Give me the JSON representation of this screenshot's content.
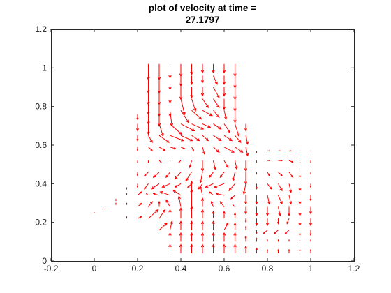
{
  "chart_data": {
    "type": "quiver",
    "title_line1": "plot of velocity at time =",
    "title_line2": "27.1797",
    "xlabel": "",
    "ylabel": "",
    "xlim": [
      -0.2,
      1.2
    ],
    "ylim": [
      0,
      1.2
    ],
    "xticks": [
      "-0.2",
      "0",
      "0.2",
      "0.4",
      "0.6",
      "0.8",
      "1",
      "1.2"
    ],
    "yticks": [
      "0",
      "0.2",
      "0.4",
      "0.6",
      "0.8",
      "1",
      "1.2"
    ],
    "arrow_color": "#ff0000",
    "arrow_scale": 0.9,
    "vectors": [
      [
        0.25,
        1.02,
        0,
        -0.09
      ],
      [
        0.3,
        1.02,
        0,
        -0.09
      ],
      [
        0.35,
        1.02,
        0,
        -0.08
      ],
      [
        0.4,
        1.02,
        0,
        -0.07
      ],
      [
        0.45,
        1.02,
        0,
        -0.06
      ],
      [
        0.5,
        1.02,
        0,
        -0.05
      ],
      [
        0.55,
        1.02,
        0,
        -0.05
      ],
      [
        0.6,
        1.02,
        0,
        -0.05
      ],
      [
        0.65,
        1.02,
        0,
        -0.07
      ],
      [
        0.25,
        0.96,
        0,
        -0.1
      ],
      [
        0.3,
        0.96,
        0,
        -0.1
      ],
      [
        0.35,
        0.96,
        0,
        -0.08
      ],
      [
        0.4,
        0.96,
        0,
        -0.06
      ],
      [
        0.45,
        0.96,
        0,
        -0.05
      ],
      [
        0.5,
        0.96,
        0,
        -0.04
      ],
      [
        0.55,
        0.96,
        0.02,
        -0.05
      ],
      [
        0.6,
        0.96,
        0,
        -0.05
      ],
      [
        0.65,
        0.96,
        0,
        -0.07
      ],
      [
        0.25,
        0.9,
        0,
        -0.1
      ],
      [
        0.3,
        0.9,
        0,
        -0.1
      ],
      [
        0.35,
        0.9,
        0,
        -0.09
      ],
      [
        0.4,
        0.9,
        0,
        -0.07
      ],
      [
        0.45,
        0.9,
        0,
        -0.06
      ],
      [
        0.5,
        0.9,
        0,
        -0.05
      ],
      [
        0.55,
        0.9,
        0.03,
        -0.06
      ],
      [
        0.6,
        0.9,
        0,
        -0.05
      ],
      [
        0.65,
        0.9,
        0,
        -0.07
      ],
      [
        0.25,
        0.84,
        0,
        -0.09
      ],
      [
        0.3,
        0.84,
        0,
        -0.1
      ],
      [
        0.35,
        0.84,
        0,
        -0.1
      ],
      [
        0.4,
        0.84,
        0.02,
        -0.09
      ],
      [
        0.45,
        0.84,
        0.02,
        -0.07
      ],
      [
        0.5,
        0.84,
        0.03,
        -0.05
      ],
      [
        0.55,
        0.84,
        0.03,
        -0.05
      ],
      [
        0.6,
        0.84,
        0,
        -0.06
      ],
      [
        0.65,
        0.84,
        0,
        -0.07
      ],
      [
        0.25,
        0.78,
        0,
        -0.08
      ],
      [
        0.3,
        0.78,
        0,
        -0.09
      ],
      [
        0.35,
        0.78,
        0.01,
        -0.09
      ],
      [
        0.4,
        0.78,
        0.04,
        -0.07
      ],
      [
        0.45,
        0.78,
        0.05,
        -0.05
      ],
      [
        0.5,
        0.78,
        0.05,
        -0.03
      ],
      [
        0.55,
        0.78,
        0.03,
        -0.04
      ],
      [
        0.6,
        0.78,
        0.01,
        -0.05
      ],
      [
        0.65,
        0.78,
        0,
        -0.07
      ],
      [
        0.2,
        0.71,
        0,
        -0.04
      ],
      [
        0.25,
        0.71,
        0,
        -0.06
      ],
      [
        0.3,
        0.71,
        0.02,
        -0.07
      ],
      [
        0.35,
        0.71,
        0.06,
        -0.06
      ],
      [
        0.4,
        0.71,
        0.07,
        -0.04
      ],
      [
        0.45,
        0.71,
        0.06,
        -0.03
      ],
      [
        0.5,
        0.71,
        0.04,
        -0.02
      ],
      [
        0.55,
        0.71,
        0.04,
        -0.03
      ],
      [
        0.6,
        0.71,
        0.03,
        -0.05
      ],
      [
        0.65,
        0.71,
        0.02,
        -0.07
      ],
      [
        0.7,
        0.71,
        0,
        -0.04
      ],
      [
        0.2,
        0.65,
        0,
        -0.03
      ],
      [
        0.25,
        0.65,
        0.02,
        -0.04
      ],
      [
        0.3,
        0.65,
        0.05,
        -0.04
      ],
      [
        0.35,
        0.65,
        0.07,
        -0.03
      ],
      [
        0.4,
        0.65,
        0.06,
        -0.03
      ],
      [
        0.45,
        0.65,
        0.04,
        -0.03
      ],
      [
        0.5,
        0.65,
        0.03,
        -0.03
      ],
      [
        0.55,
        0.65,
        0.04,
        -0.03
      ],
      [
        0.6,
        0.65,
        0.04,
        -0.03
      ],
      [
        0.65,
        0.65,
        0.03,
        -0.04
      ],
      [
        0.7,
        0.65,
        0.01,
        -0.05
      ],
      [
        0.2,
        0.59,
        0,
        -0.02
      ],
      [
        0.25,
        0.59,
        0.02,
        -0.02
      ],
      [
        0.3,
        0.59,
        0.03,
        -0.02
      ],
      [
        0.35,
        0.59,
        0.03,
        -0.01
      ],
      [
        0.4,
        0.59,
        0.02,
        -0.01
      ],
      [
        0.45,
        0.59,
        0.01,
        -0.02
      ],
      [
        0.5,
        0.59,
        0.01,
        -0.04
      ],
      [
        0.55,
        0.59,
        0.03,
        -0.03
      ],
      [
        0.6,
        0.59,
        0.05,
        -0.03
      ],
      [
        0.65,
        0.59,
        0.04,
        -0.03
      ],
      [
        0.7,
        0.59,
        0.01,
        -0.05
      ],
      [
        0.75,
        0.57,
        0,
        -0.01
      ],
      [
        0.8,
        0.57,
        0.01,
        0
      ],
      [
        0.85,
        0.57,
        0.01,
        0
      ],
      [
        0.9,
        0.57,
        0.01,
        0
      ],
      [
        0.95,
        0.57,
        0,
        0
      ],
      [
        1.0,
        0.57,
        0,
        0
      ],
      [
        0.2,
        0.52,
        0,
        -0.01
      ],
      [
        0.25,
        0.52,
        0,
        -0.01
      ],
      [
        0.3,
        0.52,
        0.01,
        -0.01
      ],
      [
        0.35,
        0.52,
        0,
        0
      ],
      [
        0.4,
        0.52,
        -0.01,
        -0.01
      ],
      [
        0.45,
        0.52,
        -0.01,
        -0.04
      ],
      [
        0.5,
        0.52,
        0,
        -0.06
      ],
      [
        0.55,
        0.52,
        0.01,
        -0.05
      ],
      [
        0.6,
        0.52,
        0.02,
        -0.04
      ],
      [
        0.65,
        0.52,
        0.01,
        -0.05
      ],
      [
        0.7,
        0.52,
        0,
        -0.06
      ],
      [
        0.75,
        0.52,
        0,
        -0.01
      ],
      [
        0.8,
        0.52,
        0.01,
        0
      ],
      [
        0.85,
        0.52,
        0.02,
        0
      ],
      [
        0.9,
        0.52,
        0.02,
        -0.01
      ],
      [
        0.95,
        0.52,
        0,
        -0.01
      ],
      [
        1.0,
        0.52,
        0,
        -0.01
      ],
      [
        0.2,
        0.46,
        0,
        -0.02
      ],
      [
        0.25,
        0.46,
        -0.02,
        -0.02
      ],
      [
        0.3,
        0.46,
        -0.03,
        -0.03
      ],
      [
        0.35,
        0.46,
        -0.02,
        -0.03
      ],
      [
        0.4,
        0.46,
        -0.03,
        -0.04
      ],
      [
        0.45,
        0.46,
        -0.03,
        -0.05
      ],
      [
        0.5,
        0.46,
        -0.01,
        -0.06
      ],
      [
        0.55,
        0.46,
        -0.02,
        -0.03
      ],
      [
        0.6,
        0.46,
        -0.02,
        -0.03
      ],
      [
        0.65,
        0.46,
        -0.01,
        -0.05
      ],
      [
        0.7,
        0.46,
        0,
        -0.07
      ],
      [
        0.75,
        0.46,
        0,
        -0.01
      ],
      [
        0.8,
        0.46,
        0.01,
        -0.02
      ],
      [
        0.85,
        0.46,
        0.02,
        -0.02
      ],
      [
        0.9,
        0.46,
        0.02,
        -0.03
      ],
      [
        0.95,
        0.46,
        0,
        -0.03
      ],
      [
        1.0,
        0.46,
        0,
        -0.01
      ],
      [
        0.2,
        0.4,
        0,
        -0.02
      ],
      [
        0.25,
        0.4,
        -0.02,
        -0.03
      ],
      [
        0.3,
        0.4,
        -0.04,
        -0.03
      ],
      [
        0.35,
        0.4,
        -0.04,
        -0.02
      ],
      [
        0.4,
        0.4,
        -0.03,
        -0.02
      ],
      [
        0.45,
        0.4,
        -0.02,
        -0.02
      ],
      [
        0.5,
        0.4,
        -0.02,
        -0.03
      ],
      [
        0.55,
        0.4,
        -0.04,
        -0.02
      ],
      [
        0.6,
        0.4,
        -0.05,
        -0.02
      ],
      [
        0.65,
        0.4,
        -0.03,
        -0.04
      ],
      [
        0.7,
        0.4,
        -0.01,
        -0.06
      ],
      [
        0.75,
        0.4,
        0,
        -0.03
      ],
      [
        0.8,
        0.4,
        0.02,
        -0.03
      ],
      [
        0.85,
        0.4,
        0.02,
        -0.04
      ],
      [
        0.9,
        0.4,
        0.01,
        -0.05
      ],
      [
        0.95,
        0.4,
        0,
        -0.04
      ],
      [
        1.0,
        0.4,
        0,
        -0.02
      ],
      [
        0.15,
        0.34,
        0,
        0.01
      ],
      [
        0.2,
        0.34,
        0.02,
        0.02
      ],
      [
        0.25,
        0.34,
        -0.01,
        0.01
      ],
      [
        0.3,
        0.34,
        -0.03,
        0.01
      ],
      [
        0.35,
        0.34,
        -0.05,
        0.02
      ],
      [
        0.4,
        0.34,
        -0.04,
        0.03
      ],
      [
        0.45,
        0.34,
        0,
        0.08
      ],
      [
        0.5,
        0.34,
        -0.01,
        0.05
      ],
      [
        0.55,
        0.34,
        -0.02,
        0.02
      ],
      [
        0.6,
        0.34,
        -0.04,
        0.01
      ],
      [
        0.65,
        0.34,
        -0.02,
        -0.02
      ],
      [
        0.7,
        0.34,
        0,
        -0.05
      ],
      [
        0.75,
        0.34,
        0,
        -0.05
      ],
      [
        0.8,
        0.34,
        0.01,
        -0.05
      ],
      [
        0.85,
        0.34,
        0.02,
        -0.05
      ],
      [
        0.9,
        0.34,
        0.01,
        -0.05
      ],
      [
        0.95,
        0.34,
        0,
        -0.05
      ],
      [
        1.0,
        0.34,
        0,
        -0.03
      ],
      [
        0.1,
        0.29,
        0,
        0.01
      ],
      [
        0.15,
        0.29,
        0,
        0.01
      ],
      [
        0.2,
        0.28,
        0.02,
        0.02
      ],
      [
        0.25,
        0.28,
        0.02,
        0.03
      ],
      [
        0.3,
        0.28,
        0,
        0.03
      ],
      [
        0.35,
        0.28,
        -0.02,
        0.04
      ],
      [
        0.4,
        0.28,
        -0.01,
        0.06
      ],
      [
        0.45,
        0.28,
        0,
        0.1
      ],
      [
        0.5,
        0.28,
        0,
        0.05
      ],
      [
        0.55,
        0.28,
        -0.01,
        0.03
      ],
      [
        0.6,
        0.28,
        -0.02,
        0.03
      ],
      [
        0.65,
        0.28,
        -0.01,
        0.01
      ],
      [
        0.7,
        0.28,
        0,
        -0.04
      ],
      [
        0.75,
        0.28,
        0,
        -0.05
      ],
      [
        0.8,
        0.28,
        0,
        -0.05
      ],
      [
        0.85,
        0.28,
        0.01,
        -0.05
      ],
      [
        0.9,
        0.28,
        0,
        -0.05
      ],
      [
        0.95,
        0.28,
        0,
        -0.05
      ],
      [
        1.0,
        0.28,
        0,
        -0.04
      ],
      [
        0.15,
        0.22,
        0,
        0.01
      ],
      [
        0.2,
        0.22,
        0.02,
        0.01
      ],
      [
        0.25,
        0.22,
        0.05,
        0.05
      ],
      [
        0.3,
        0.22,
        0.03,
        0.05
      ],
      [
        0.35,
        0.22,
        0,
        0.05
      ],
      [
        0.4,
        0.22,
        0,
        0.06
      ],
      [
        0.45,
        0.22,
        0,
        0.07
      ],
      [
        0.5,
        0.22,
        0,
        0.05
      ],
      [
        0.55,
        0.22,
        0,
        0.04
      ],
      [
        0.6,
        0.22,
        0,
        0.04
      ],
      [
        0.65,
        0.22,
        0,
        0.03
      ],
      [
        0.7,
        0.22,
        0,
        -0.02
      ],
      [
        0.75,
        0.22,
        0,
        -0.04
      ],
      [
        0.8,
        0.22,
        0,
        -0.04
      ],
      [
        0.85,
        0.22,
        0,
        -0.03
      ],
      [
        0.9,
        0.22,
        -0.01,
        -0.03
      ],
      [
        0.95,
        0.22,
        0,
        -0.04
      ],
      [
        1.0,
        0.22,
        0,
        -0.04
      ],
      [
        0.3,
        0.16,
        0.04,
        0.04
      ],
      [
        0.35,
        0.16,
        0.01,
        0.05
      ],
      [
        0.4,
        0.16,
        0,
        0.05
      ],
      [
        0.45,
        0.16,
        0,
        0.05
      ],
      [
        0.5,
        0.16,
        0,
        0.05
      ],
      [
        0.55,
        0.16,
        0,
        0.05
      ],
      [
        0.6,
        0.16,
        0.02,
        0.04
      ],
      [
        0.65,
        0.16,
        0,
        0.04
      ],
      [
        0.7,
        0.16,
        0,
        0.02
      ],
      [
        0.75,
        0.16,
        0,
        -0.02
      ],
      [
        0.8,
        0.16,
        -0.02,
        -0.02
      ],
      [
        0.85,
        0.16,
        -0.02,
        -0.02
      ],
      [
        0.9,
        0.16,
        -0.02,
        -0.02
      ],
      [
        0.95,
        0.16,
        0,
        -0.03
      ],
      [
        1.0,
        0.16,
        0,
        -0.03
      ],
      [
        0.35,
        0.1,
        0,
        0.05
      ],
      [
        0.4,
        0.1,
        0,
        0.05
      ],
      [
        0.45,
        0.1,
        0,
        0.05
      ],
      [
        0.5,
        0.1,
        0,
        0.05
      ],
      [
        0.55,
        0.1,
        0,
        0.05
      ],
      [
        0.6,
        0.1,
        0,
        0.05
      ],
      [
        0.65,
        0.1,
        0,
        0.05
      ],
      [
        0.7,
        0.1,
        0,
        0.03
      ],
      [
        0.75,
        0.1,
        0,
        0.02
      ],
      [
        0.8,
        0.1,
        0,
        0.01
      ],
      [
        0.85,
        0.1,
        0,
        0.01
      ],
      [
        0.9,
        0.1,
        0,
        0.01
      ],
      [
        0.95,
        0.1,
        0,
        0.01
      ],
      [
        1.0,
        0.1,
        0,
        0.01
      ],
      [
        0.35,
        0.04,
        0,
        0.05
      ],
      [
        0.4,
        0.04,
        0,
        0.05
      ],
      [
        0.45,
        0.04,
        0,
        0.05
      ],
      [
        0.5,
        0.04,
        0,
        0.05
      ],
      [
        0.55,
        0.04,
        0,
        0.05
      ],
      [
        0.6,
        0.04,
        0,
        0.05
      ],
      [
        0.65,
        0.04,
        0,
        0.05
      ],
      [
        0.7,
        0.04,
        0,
        0.04
      ],
      [
        0.75,
        0.04,
        0,
        0.03
      ],
      [
        0.8,
        0.04,
        0,
        0.02
      ],
      [
        0.85,
        0.04,
        0,
        0.02
      ],
      [
        0.9,
        0.04,
        0,
        0.02
      ],
      [
        0.95,
        0.04,
        0,
        0.02
      ],
      [
        1.0,
        0.04,
        0,
        0.02
      ],
      [
        0.0,
        0.25,
        0,
        0
      ],
      [
        0.05,
        0.27,
        0,
        0
      ],
      [
        0.1,
        0.31,
        0,
        0.01
      ],
      [
        0.15,
        0.37,
        0,
        0.01
      ],
      [
        0.2,
        0.76,
        0,
        -0.03
      ]
    ]
  }
}
